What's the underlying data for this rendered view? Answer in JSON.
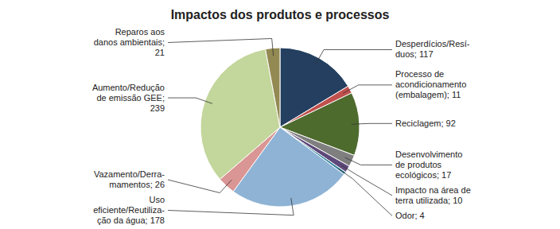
{
  "chart_data": {
    "type": "pie",
    "title": "Impactos dos produtos e processos",
    "categories": [
      "Desperdícios/Resí-\nduos; 117",
      "Processo de\nacondicionamento\n(embalagem); 11",
      "Reciclagem; 92",
      "Desenvolvimento\nde produtos\necológicos; 17",
      "Impacto na área de\nterra utilizada; 10",
      "Odor; 4",
      "Uso\neficiente/Reutiliza-\nção da água; 178",
      "Vazamento/Derra-\nmamentos; 26",
      "Aumento/Redução\nde emissão GEE;\n239",
      "Reparos aos\ndanos ambientais;\n21"
    ],
    "values": [
      117,
      11,
      92,
      17,
      10,
      4,
      178,
      26,
      239,
      21
    ],
    "colors": [
      "#243f60",
      "#c0504d",
      "#4e6b2e",
      "#7f7f7f",
      "#5f497a",
      "#31849b",
      "#8eb3d5",
      "#d99694",
      "#c3d69b",
      "#938953"
    ]
  }
}
